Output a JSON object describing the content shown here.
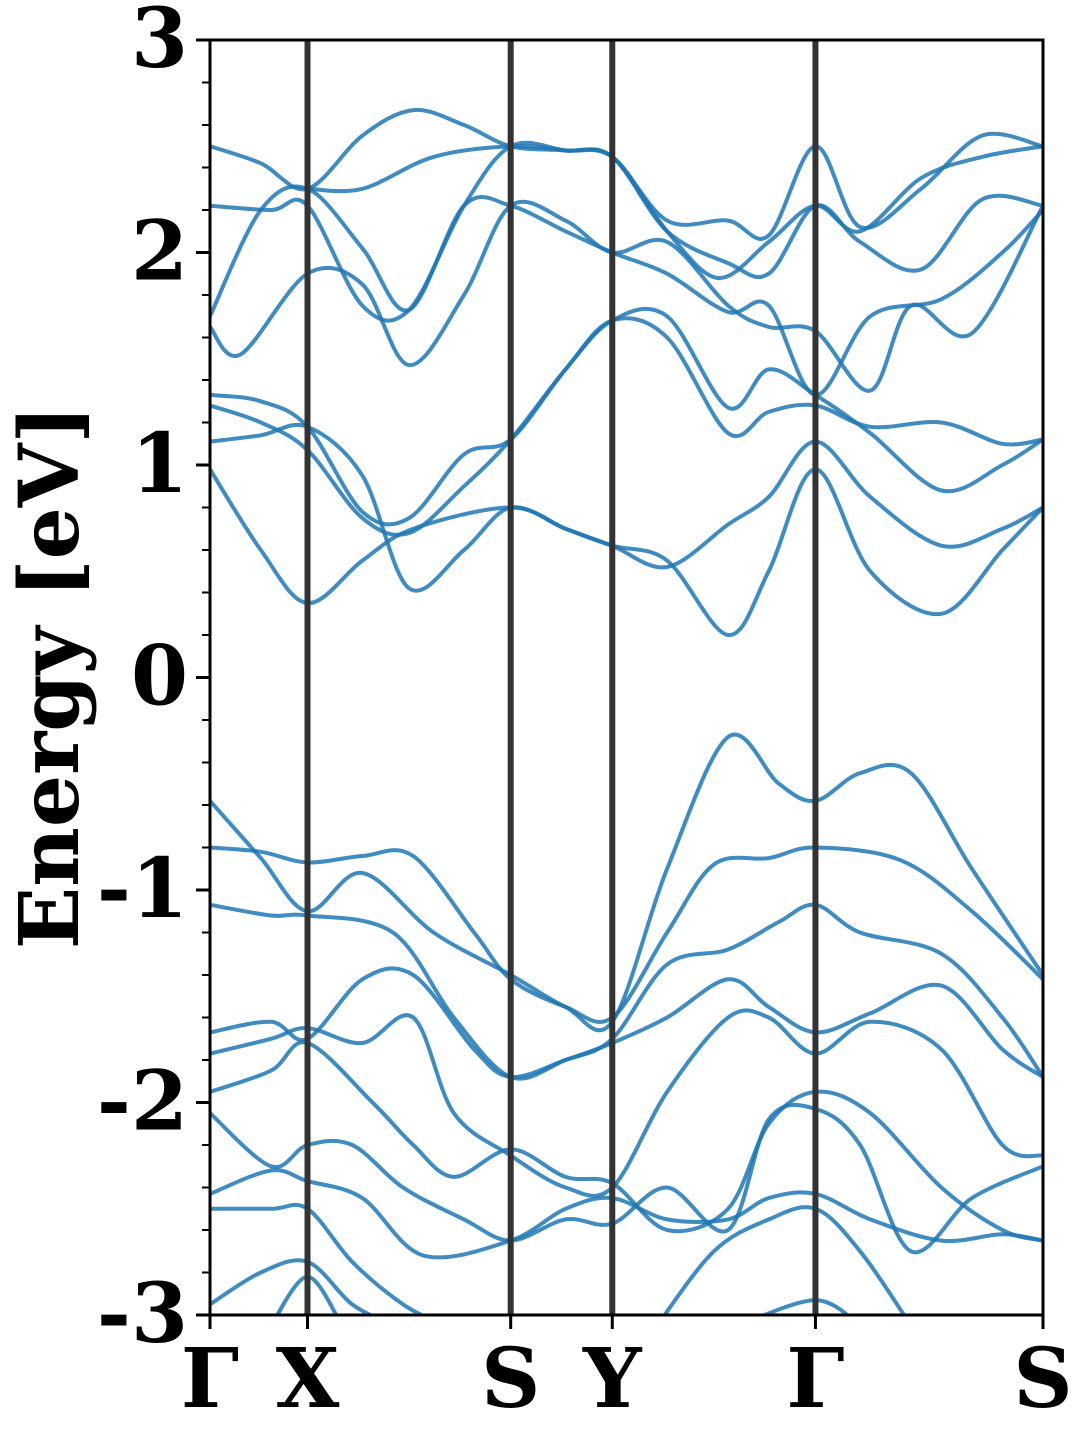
{
  "chart_data": {
    "type": "line",
    "title": "",
    "xlabel": "",
    "ylabel": "Energy [eV]",
    "ylim": [
      -3,
      3
    ],
    "xlim": [
      0,
      8.2
    ],
    "y_ticks": [
      -3,
      -2,
      -1,
      0,
      1,
      2,
      3
    ],
    "y_tick_labels": [
      "-3",
      "-2",
      "-1",
      "0",
      "1",
      "2",
      "3"
    ],
    "high_symmetry_points": [
      {
        "label": "Γ",
        "x": 0
      },
      {
        "label": "X",
        "x": 0.96
      },
      {
        "label": "S",
        "x": 2.96
      },
      {
        "label": "Y",
        "x": 3.96
      },
      {
        "label": "Γ",
        "x": 5.96
      },
      {
        "label": "S",
        "x": 8.2
      }
    ],
    "grid": false,
    "line_color": "#1f77b4",
    "vline_color": "#333333",
    "series": [
      {
        "values": [
          [
            0,
            -0.58
          ],
          [
            0.5,
            -0.85
          ],
          [
            0.96,
            -1.1
          ],
          [
            1.5,
            -0.92
          ],
          [
            2.2,
            -1.2
          ],
          [
            2.96,
            -1.4
          ],
          [
            3.5,
            -1.55
          ],
          [
            3.96,
            -1.62
          ],
          [
            4.5,
            -0.9
          ],
          [
            5.1,
            -0.28
          ],
          [
            5.6,
            -0.5
          ],
          [
            5.96,
            -0.58
          ],
          [
            6.4,
            -0.45
          ],
          [
            6.9,
            -0.45
          ],
          [
            7.5,
            -0.9
          ],
          [
            8.2,
            -1.4
          ]
        ]
      },
      {
        "values": [
          [
            0,
            -0.8
          ],
          [
            0.5,
            -0.82
          ],
          [
            0.96,
            -0.87
          ],
          [
            1.5,
            -0.84
          ],
          [
            2.0,
            -0.84
          ],
          [
            2.6,
            -1.2
          ],
          [
            2.96,
            -1.42
          ],
          [
            3.5,
            -1.55
          ],
          [
            3.96,
            -1.6
          ],
          [
            4.5,
            -1.2
          ],
          [
            4.96,
            -0.88
          ],
          [
            5.5,
            -0.85
          ],
          [
            5.96,
            -0.8
          ],
          [
            6.8,
            -0.86
          ],
          [
            7.5,
            -1.1
          ],
          [
            8.2,
            -1.42
          ]
        ]
      },
      {
        "values": [
          [
            0,
            -1.07
          ],
          [
            0.6,
            -1.12
          ],
          [
            0.96,
            -1.12
          ],
          [
            1.8,
            -1.2
          ],
          [
            2.4,
            -1.6
          ],
          [
            2.96,
            -1.88
          ],
          [
            3.5,
            -1.8
          ],
          [
            3.96,
            -1.7
          ],
          [
            4.5,
            -1.35
          ],
          [
            5.1,
            -1.28
          ],
          [
            5.6,
            -1.15
          ],
          [
            5.96,
            -1.07
          ],
          [
            6.4,
            -1.2
          ],
          [
            7.2,
            -1.3
          ],
          [
            7.8,
            -1.6
          ],
          [
            8.2,
            -1.88
          ]
        ]
      },
      {
        "values": [
          [
            0,
            -1.67
          ],
          [
            0.6,
            -1.62
          ],
          [
            0.96,
            -1.7
          ],
          [
            1.5,
            -1.42
          ],
          [
            2.0,
            -1.4
          ],
          [
            2.6,
            -1.75
          ],
          [
            2.96,
            -1.88
          ],
          [
            3.5,
            -1.8
          ],
          [
            3.96,
            -1.72
          ],
          [
            4.5,
            -1.6
          ],
          [
            5.1,
            -1.42
          ],
          [
            5.5,
            -1.55
          ],
          [
            5.96,
            -1.67
          ],
          [
            6.5,
            -1.58
          ],
          [
            7.2,
            -1.45
          ],
          [
            7.8,
            -1.75
          ],
          [
            8.2,
            -1.88
          ]
        ]
      },
      {
        "values": [
          [
            0,
            -1.77
          ],
          [
            0.6,
            -1.7
          ],
          [
            0.96,
            -1.65
          ],
          [
            1.5,
            -1.72
          ],
          [
            2.0,
            -1.6
          ],
          [
            2.4,
            -2.05
          ],
          [
            2.96,
            -2.25
          ],
          [
            3.5,
            -2.4
          ],
          [
            3.96,
            -2.4
          ],
          [
            4.5,
            -1.95
          ],
          [
            5.1,
            -1.6
          ],
          [
            5.5,
            -1.6
          ],
          [
            5.96,
            -1.77
          ],
          [
            6.5,
            -1.62
          ],
          [
            7.2,
            -1.75
          ],
          [
            7.8,
            -2.2
          ],
          [
            8.2,
            -2.25
          ]
        ]
      },
      {
        "values": [
          [
            0,
            -1.95
          ],
          [
            0.6,
            -1.85
          ],
          [
            0.96,
            -1.72
          ],
          [
            1.6,
            -2.0
          ],
          [
            2.0,
            -2.2
          ],
          [
            2.4,
            -2.35
          ],
          [
            2.96,
            -2.22
          ],
          [
            3.5,
            -2.35
          ],
          [
            3.96,
            -2.38
          ],
          [
            4.5,
            -2.6
          ],
          [
            5.1,
            -2.5
          ],
          [
            5.5,
            -2.1
          ],
          [
            5.96,
            -1.95
          ],
          [
            6.5,
            -2.05
          ],
          [
            7.2,
            -2.4
          ],
          [
            7.8,
            -2.6
          ],
          [
            8.2,
            -2.65
          ]
        ]
      },
      {
        "values": [
          [
            0,
            -2.05
          ],
          [
            0.6,
            -2.3
          ],
          [
            0.96,
            -2.2
          ],
          [
            1.4,
            -2.2
          ],
          [
            1.9,
            -2.4
          ],
          [
            2.5,
            -2.55
          ],
          [
            2.96,
            -2.65
          ],
          [
            3.5,
            -2.55
          ],
          [
            3.96,
            -2.57
          ],
          [
            4.5,
            -2.4
          ],
          [
            5.1,
            -2.6
          ],
          [
            5.5,
            -2.08
          ],
          [
            5.96,
            -2.03
          ],
          [
            6.4,
            -2.2
          ],
          [
            6.9,
            -2.7
          ],
          [
            7.5,
            -2.45
          ],
          [
            8.2,
            -2.3
          ]
        ]
      },
      {
        "values": [
          [
            0,
            -2.43
          ],
          [
            0.6,
            -2.32
          ],
          [
            0.96,
            -2.37
          ],
          [
            1.5,
            -2.45
          ],
          [
            2.1,
            -2.72
          ],
          [
            2.96,
            -2.65
          ],
          [
            3.5,
            -2.5
          ],
          [
            3.96,
            -2.45
          ],
          [
            4.5,
            -2.55
          ],
          [
            5.1,
            -2.55
          ],
          [
            5.5,
            -2.45
          ],
          [
            5.96,
            -2.43
          ],
          [
            6.5,
            -2.55
          ],
          [
            7.2,
            -2.65
          ],
          [
            7.8,
            -2.62
          ],
          [
            8.2,
            -2.65
          ]
        ]
      },
      {
        "values": [
          [
            0,
            -2.5
          ],
          [
            0.6,
            -2.5
          ],
          [
            0.96,
            -2.5
          ],
          [
            1.4,
            -2.75
          ],
          [
            1.9,
            -2.95
          ],
          [
            2.3,
            -3.05
          ]
        ]
      },
      {
        "values": [
          [
            0,
            -2.95
          ],
          [
            0.5,
            -2.8
          ],
          [
            0.96,
            -2.75
          ],
          [
            1.4,
            -2.95
          ],
          [
            1.8,
            -3.05
          ]
        ]
      },
      {
        "values": [
          [
            4.4,
            -3.05
          ],
          [
            4.96,
            -2.7
          ],
          [
            5.5,
            -2.55
          ],
          [
            5.96,
            -2.5
          ],
          [
            6.4,
            -2.7
          ],
          [
            6.9,
            -3.05
          ]
        ]
      },
      {
        "values": [
          [
            0.6,
            -3.05
          ],
          [
            0.96,
            -2.82
          ],
          [
            1.3,
            -3.05
          ]
        ]
      },
      {
        "values": [
          [
            5.2,
            -3.05
          ],
          [
            5.96,
            -2.93
          ],
          [
            6.4,
            -3.05
          ]
        ]
      },
      {
        "values": [
          [
            0,
            0.98
          ],
          [
            0.5,
            0.6
          ],
          [
            0.96,
            0.35
          ],
          [
            1.5,
            0.55
          ],
          [
            2.0,
            0.7
          ],
          [
            2.96,
            0.8
          ],
          [
            3.5,
            0.7
          ],
          [
            3.96,
            0.62
          ],
          [
            4.5,
            0.55
          ],
          [
            5.1,
            0.2
          ],
          [
            5.5,
            0.5
          ],
          [
            5.96,
            0.98
          ],
          [
            6.5,
            0.5
          ],
          [
            7.2,
            0.3
          ],
          [
            7.8,
            0.6
          ],
          [
            8.2,
            0.8
          ]
        ]
      },
      {
        "values": [
          [
            0,
            1.11
          ],
          [
            0.5,
            1.14
          ],
          [
            0.96,
            1.18
          ],
          [
            1.5,
            0.95
          ],
          [
            1.96,
            0.42
          ],
          [
            2.5,
            0.6
          ],
          [
            2.96,
            0.8
          ],
          [
            3.5,
            0.7
          ],
          [
            3.96,
            0.62
          ],
          [
            4.5,
            0.52
          ],
          [
            5.1,
            0.72
          ],
          [
            5.5,
            0.85
          ],
          [
            5.96,
            1.11
          ],
          [
            6.5,
            0.85
          ],
          [
            7.2,
            0.62
          ],
          [
            7.8,
            0.7
          ],
          [
            8.2,
            0.8
          ]
        ]
      },
      {
        "values": [
          [
            0,
            1.28
          ],
          [
            0.5,
            1.2
          ],
          [
            0.96,
            1.07
          ],
          [
            1.5,
            0.75
          ],
          [
            1.96,
            0.68
          ],
          [
            2.5,
            0.9
          ],
          [
            2.96,
            1.12
          ],
          [
            3.5,
            1.45
          ],
          [
            3.96,
            1.68
          ],
          [
            4.5,
            1.6
          ],
          [
            5.1,
            1.15
          ],
          [
            5.5,
            1.25
          ],
          [
            5.96,
            1.28
          ],
          [
            6.5,
            1.18
          ],
          [
            7.2,
            1.2
          ],
          [
            7.8,
            1.1
          ],
          [
            8.2,
            1.12
          ]
        ]
      },
      {
        "values": [
          [
            0,
            1.33
          ],
          [
            0.5,
            1.3
          ],
          [
            0.96,
            1.18
          ],
          [
            1.5,
            0.78
          ],
          [
            1.96,
            0.75
          ],
          [
            2.5,
            1.05
          ],
          [
            2.96,
            1.12
          ],
          [
            3.5,
            1.45
          ],
          [
            3.96,
            1.68
          ],
          [
            4.5,
            1.7
          ],
          [
            5.1,
            1.27
          ],
          [
            5.5,
            1.45
          ],
          [
            5.96,
            1.33
          ],
          [
            6.5,
            1.15
          ],
          [
            7.2,
            0.88
          ],
          [
            7.8,
            1.0
          ],
          [
            8.2,
            1.12
          ]
        ]
      },
      {
        "values": [
          [
            0,
            1.65
          ],
          [
            0.3,
            1.52
          ],
          [
            0.96,
            1.9
          ],
          [
            1.5,
            1.85
          ],
          [
            1.96,
            1.47
          ],
          [
            2.5,
            1.8
          ],
          [
            2.96,
            2.22
          ],
          [
            3.5,
            2.15
          ],
          [
            3.96,
            2.0
          ],
          [
            4.5,
            2.05
          ],
          [
            5.1,
            1.75
          ],
          [
            5.5,
            1.65
          ],
          [
            5.96,
            1.63
          ],
          [
            6.5,
            1.35
          ],
          [
            6.9,
            1.75
          ],
          [
            7.5,
            1.62
          ],
          [
            8.2,
            2.22
          ]
        ]
      },
      {
        "values": [
          [
            0,
            1.7
          ],
          [
            0.5,
            2.2
          ],
          [
            0.96,
            2.3
          ],
          [
            1.5,
            2.02
          ],
          [
            1.96,
            1.73
          ],
          [
            2.5,
            2.22
          ],
          [
            2.96,
            2.22
          ],
          [
            3.5,
            2.1
          ],
          [
            3.96,
            2.0
          ],
          [
            4.5,
            1.9
          ],
          [
            5.1,
            1.72
          ],
          [
            5.5,
            1.75
          ],
          [
            5.96,
            1.33
          ],
          [
            6.5,
            1.7
          ],
          [
            7.2,
            1.78
          ],
          [
            7.8,
            2.0
          ],
          [
            8.2,
            2.2
          ]
        ]
      },
      {
        "values": [
          [
            0,
            2.22
          ],
          [
            0.6,
            2.2
          ],
          [
            0.96,
            2.22
          ],
          [
            1.5,
            1.75
          ],
          [
            1.96,
            1.73
          ],
          [
            2.5,
            2.22
          ],
          [
            2.96,
            2.5
          ],
          [
            3.5,
            2.48
          ],
          [
            3.96,
            2.45
          ],
          [
            4.5,
            2.1
          ],
          [
            5.1,
            1.95
          ],
          [
            5.5,
            1.9
          ],
          [
            5.96,
            2.22
          ],
          [
            6.4,
            2.05
          ],
          [
            7.0,
            1.92
          ],
          [
            7.6,
            2.25
          ],
          [
            8.2,
            2.22
          ]
        ]
      },
      {
        "values": [
          [
            0,
            2.5
          ],
          [
            0.5,
            2.42
          ],
          [
            0.96,
            2.3
          ],
          [
            1.5,
            2.55
          ],
          [
            2.0,
            2.67
          ],
          [
            2.5,
            2.6
          ],
          [
            2.96,
            2.5
          ],
          [
            3.5,
            2.48
          ],
          [
            3.96,
            2.45
          ],
          [
            4.5,
            2.15
          ],
          [
            5.1,
            2.15
          ],
          [
            5.5,
            2.08
          ],
          [
            5.96,
            2.5
          ],
          [
            6.4,
            2.12
          ],
          [
            7.0,
            2.3
          ],
          [
            7.6,
            2.55
          ],
          [
            8.2,
            2.5
          ]
        ]
      },
      {
        "values": [
          [
            0.96,
            2.3
          ],
          [
            1.5,
            2.3
          ],
          [
            2.2,
            2.45
          ],
          [
            2.96,
            2.5
          ],
          [
            3.5,
            2.48
          ],
          [
            3.96,
            2.45
          ],
          [
            4.5,
            2.1
          ],
          [
            5.0,
            1.88
          ],
          [
            5.5,
            2.05
          ],
          [
            5.96,
            2.22
          ],
          [
            6.4,
            2.1
          ],
          [
            7.0,
            2.35
          ],
          [
            7.6,
            2.45
          ],
          [
            8.2,
            2.5
          ]
        ]
      }
    ]
  }
}
